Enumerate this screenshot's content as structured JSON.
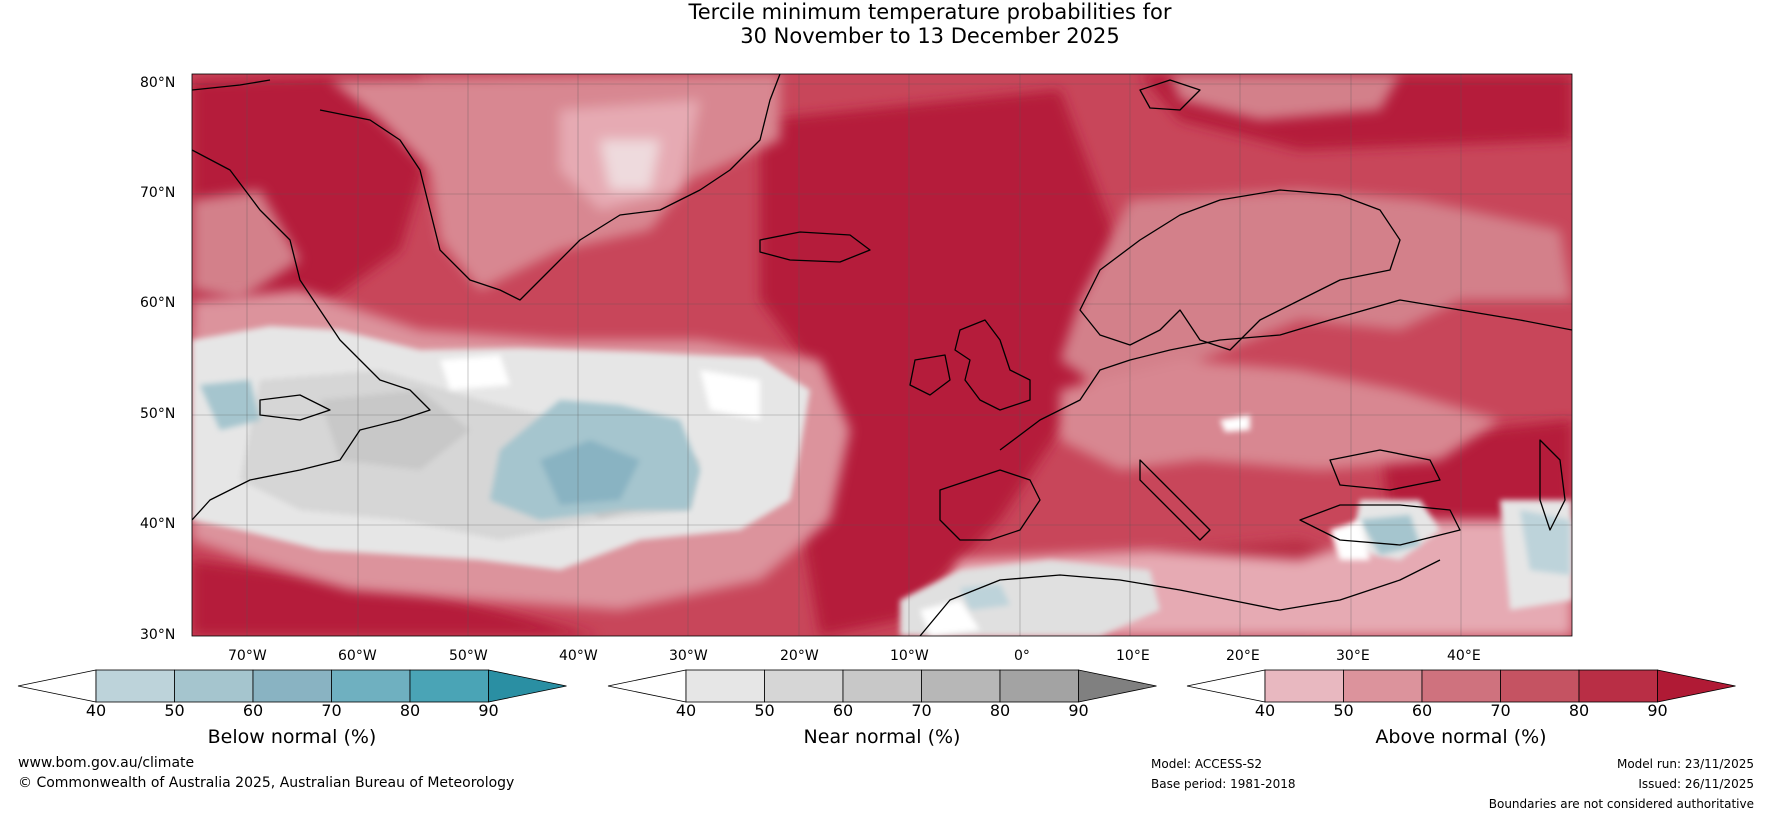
{
  "title": {
    "line1": "Tercile minimum temperature probabilities for",
    "line2": "30 November to 13 December 2025"
  },
  "axes": {
    "lat_labels": [
      "80°N",
      "70°N",
      "60°N",
      "50°N",
      "40°N",
      "30°N"
    ],
    "lon_labels": [
      "70°W",
      "60°W",
      "50°W",
      "40°W",
      "30°W",
      "20°W",
      "10°W",
      "0°",
      "10°E",
      "20°E",
      "30°E",
      "40°E"
    ]
  },
  "map": {
    "extent": {
      "lon_min": -75,
      "lon_max": 50,
      "lat_min": 30,
      "lat_max": 81
    },
    "gridlines": {
      "lon_step": 10,
      "lat_step": 10
    }
  },
  "colorbars": [
    {
      "name": "below-normal",
      "title": "Below normal (%)",
      "ticks": [
        "40",
        "50",
        "60",
        "70",
        "80",
        "90"
      ],
      "colors": [
        "#ffffff",
        "#bdd3da",
        "#a5c5ce",
        "#89b3c2",
        "#6fb0c0",
        "#4aa4b6",
        "#2a8fa3"
      ]
    },
    {
      "name": "near-normal",
      "title": "Near normal (%)",
      "ticks": [
        "40",
        "50",
        "60",
        "70",
        "80",
        "90"
      ],
      "colors": [
        "#ffffff",
        "#e6e6e6",
        "#d6d6d6",
        "#c8c8c8",
        "#b7b7b7",
        "#a3a3a3",
        "#808080"
      ]
    },
    {
      "name": "above-normal",
      "title": "Above normal (%)",
      "ticks": [
        "40",
        "50",
        "60",
        "70",
        "80",
        "90"
      ],
      "colors": [
        "#ffffff",
        "#e8b8c0",
        "#dc939c",
        "#cf727e",
        "#c55362",
        "#b92e45",
        "#b01a35"
      ]
    }
  ],
  "footer": {
    "website": "www.bom.gov.au/climate",
    "copyright": "© Commonwealth of Australia 2025, Australian Bureau of Meteorology",
    "model": "Model: ACCESS-S2",
    "base_period": "Base period: 1981-2018",
    "model_run": "Model run: 23/11/2025",
    "issued": "Issued: 26/11/2025",
    "disclaimer": "Boundaries are not considered authoritative"
  },
  "colors": {
    "above_light": "#e8b8c0",
    "above_mid": "#cf727e",
    "above_dark": "#b01a35",
    "near_light": "#e6e6e6",
    "near_mid": "#c8c8c8",
    "below_light": "#bdd3da",
    "below_mid": "#89b3c2"
  }
}
